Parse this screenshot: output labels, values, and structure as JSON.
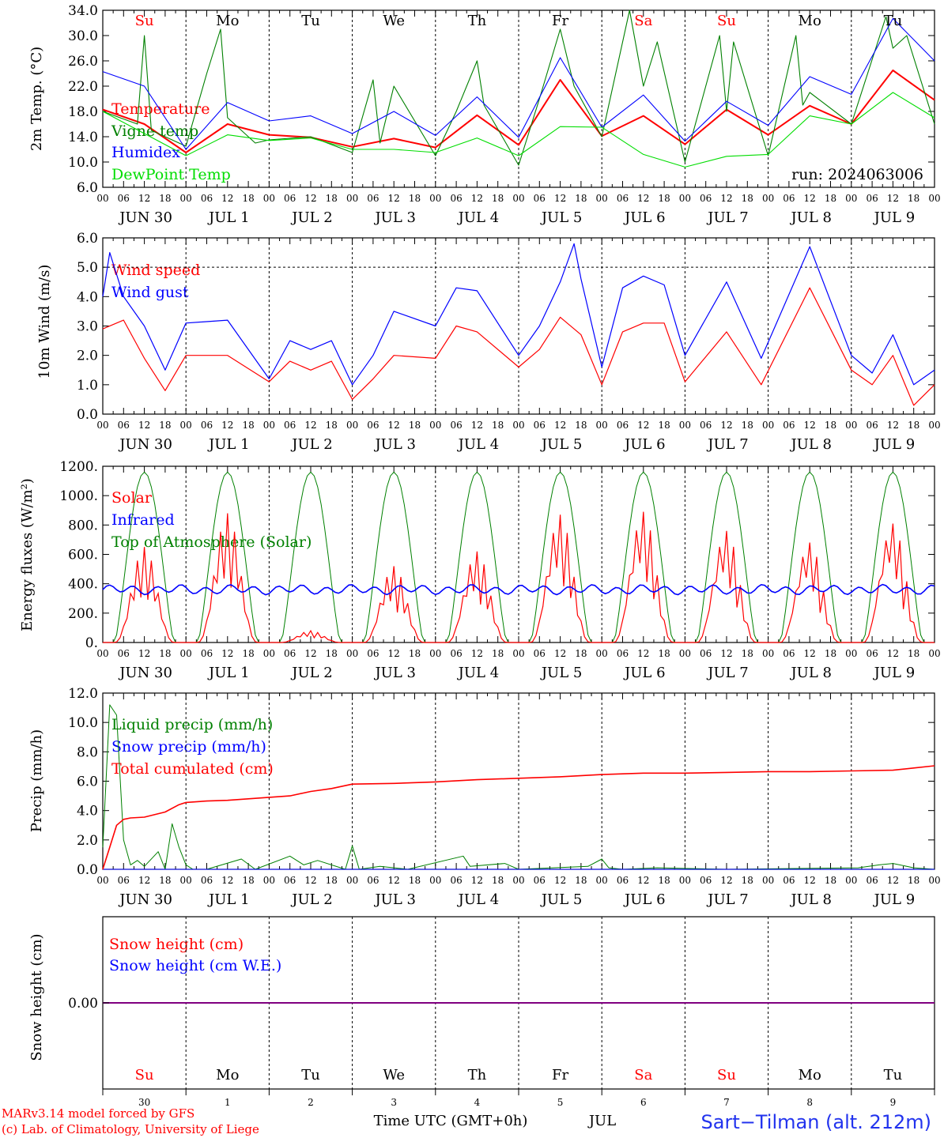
{
  "colors": {
    "red": "#ff0000",
    "green": "#008000",
    "blue": "#0000ff",
    "lightgreen": "#00dd00",
    "purple": "#800080"
  },
  "chart_data": [
    {
      "type": "line",
      "ylabel": "2m Temp. (°C)",
      "ylim": [
        6,
        34
      ],
      "yticks": [
        6,
        10,
        14,
        18,
        22,
        26,
        30,
        34
      ],
      "ytick_labels": [
        "6.0",
        "10.0",
        "14.0",
        "18.0",
        "22.0",
        "26.0",
        "30.0",
        "34.0"
      ],
      "annotation": "run: 2024063006",
      "series": [
        {
          "name": "Temperature",
          "color": "#ff0000",
          "hours": [
            0,
            12,
            24,
            36,
            48,
            60,
            72,
            84,
            96,
            108,
            120,
            132,
            144,
            156,
            168,
            180,
            192,
            204,
            216,
            228,
            240
          ],
          "values": [
            18.3,
            16.0,
            11.5,
            16.0,
            14.3,
            13.9,
            12.4,
            13.7,
            12.3,
            17.4,
            12.7,
            23.0,
            14.1,
            17.3,
            12.8,
            18.3,
            14.3,
            18.9,
            16.0,
            24.5,
            19.8
          ]
        },
        {
          "name": "Vigne temp",
          "color": "#008000",
          "hours": [
            0,
            10,
            12,
            14,
            22,
            24,
            30,
            34,
            36,
            44,
            48,
            60,
            72,
            78,
            80,
            84,
            96,
            102,
            108,
            110,
            120,
            126,
            132,
            136,
            144,
            152,
            156,
            160,
            168,
            178,
            180,
            182,
            192,
            200,
            202,
            204,
            216,
            226,
            228,
            232,
            240
          ],
          "values": [
            18.0,
            16.0,
            30.0,
            15.0,
            13.0,
            12.5,
            24.0,
            31.0,
            17.0,
            13.0,
            13.5,
            14.0,
            11.5,
            23.0,
            13.0,
            22.0,
            11.0,
            18.0,
            26.0,
            19.0,
            9.5,
            20.0,
            31.0,
            22.0,
            14.0,
            34.0,
            22.0,
            29.0,
            10.0,
            30.0,
            18.0,
            29.0,
            11.0,
            30.0,
            19.0,
            21.0,
            16.0,
            33.0,
            28.0,
            30.0,
            16.0
          ]
        },
        {
          "name": "Humidex",
          "color": "#0000ff",
          "hours": [
            0,
            12,
            24,
            36,
            48,
            60,
            72,
            84,
            96,
            108,
            120,
            132,
            144,
            156,
            168,
            180,
            192,
            204,
            216,
            228,
            240
          ],
          "values": [
            24.3,
            22.0,
            12.0,
            19.4,
            16.5,
            17.3,
            14.5,
            18.0,
            14.2,
            20.3,
            13.9,
            26.5,
            15.5,
            20.6,
            13.3,
            19.6,
            15.8,
            23.5,
            20.7,
            32.7,
            26.0
          ]
        },
        {
          "name": "DewPoint Temp",
          "color": "#00dd00",
          "hours": [
            0,
            12,
            24,
            36,
            48,
            60,
            72,
            84,
            96,
            108,
            120,
            132,
            144,
            156,
            168,
            180,
            192,
            204,
            216,
            228,
            240
          ],
          "values": [
            18.0,
            14.5,
            11.0,
            14.3,
            13.4,
            13.8,
            12.0,
            12.0,
            11.5,
            13.8,
            11.0,
            15.6,
            15.5,
            11.2,
            9.2,
            10.9,
            11.2,
            17.3,
            16.0,
            21.0,
            17.0
          ]
        }
      ]
    },
    {
      "type": "line",
      "ylabel": "10m Wind (m/s)",
      "ylim": [
        0,
        6
      ],
      "yticks": [
        0,
        1,
        2,
        3,
        4,
        5,
        6
      ],
      "ytick_labels": [
        "0.0",
        "1.0",
        "2.0",
        "3.0",
        "4.0",
        "5.0",
        "6.0"
      ],
      "series": [
        {
          "name": "Wind speed",
          "color": "#ff0000",
          "hours": [
            0,
            6,
            12,
            18,
            24,
            36,
            48,
            54,
            60,
            66,
            72,
            78,
            84,
            96,
            102,
            108,
            120,
            126,
            132,
            138,
            144,
            150,
            156,
            162,
            168,
            180,
            190,
            204,
            216,
            222,
            228,
            234,
            240
          ],
          "values": [
            2.9,
            3.2,
            1.9,
            0.8,
            2.0,
            2.0,
            1.1,
            1.8,
            1.5,
            1.8,
            0.5,
            1.2,
            2.0,
            1.9,
            3.0,
            2.8,
            1.6,
            2.2,
            3.3,
            2.7,
            1.0,
            2.8,
            3.1,
            3.1,
            1.1,
            2.8,
            1.0,
            4.3,
            1.5,
            1.0,
            2.0,
            0.3,
            1.0
          ]
        },
        {
          "name": "Wind gust",
          "color": "#0000ff",
          "hours": [
            0,
            2,
            6,
            12,
            18,
            24,
            36,
            48,
            54,
            60,
            66,
            72,
            78,
            84,
            96,
            102,
            108,
            120,
            126,
            132,
            136,
            138,
            144,
            150,
            156,
            162,
            168,
            180,
            190,
            204,
            216,
            222,
            228,
            234,
            240
          ],
          "values": [
            4.0,
            5.5,
            4.0,
            3.0,
            1.5,
            3.1,
            3.2,
            1.2,
            2.5,
            2.2,
            2.5,
            1.0,
            2.0,
            3.5,
            3.0,
            4.3,
            4.2,
            2.0,
            3.0,
            4.5,
            5.8,
            4.6,
            1.6,
            4.3,
            4.7,
            4.4,
            2.0,
            4.5,
            1.9,
            5.7,
            2.0,
            1.4,
            2.7,
            1.0,
            1.5
          ]
        }
      ]
    },
    {
      "type": "line",
      "ylabel": "Energy fluxes (W/m²)",
      "ylim": [
        0,
        1200
      ],
      "yticks": [
        0,
        200,
        400,
        600,
        800,
        1000,
        1200
      ],
      "ytick_labels": [
        "0.",
        "200.",
        "400.",
        "600.",
        "800.",
        "1000.",
        "1200."
      ],
      "toa_peak": 1160,
      "solar_daily_peak": [
        650,
        880,
        80,
        520,
        620,
        870,
        890,
        760,
        680,
        810
      ],
      "infrared_mean": 360,
      "series": [
        {
          "name": "Solar",
          "color": "#ff0000"
        },
        {
          "name": "Infrared",
          "color": "#0000ff"
        },
        {
          "name": "Top of Atmosphere (Solar)",
          "color": "#008000"
        }
      ]
    },
    {
      "type": "line",
      "ylabel": "Precip (mm/h)",
      "ylim": [
        0,
        12
      ],
      "yticks": [
        0,
        2,
        4,
        6,
        8,
        10,
        12
      ],
      "ytick_labels": [
        "0.0",
        "2.0",
        "4.0",
        "6.0",
        "8.0",
        "10.0",
        "12.0"
      ],
      "series": [
        {
          "name": "Liquid precip (mm/h)",
          "color": "#008000",
          "hours": [
            0,
            2,
            4,
            6,
            8,
            10,
            12,
            16,
            18,
            20,
            22,
            24,
            26,
            30,
            40,
            44,
            54,
            58,
            62,
            70,
            72,
            74,
            80,
            88,
            104,
            106,
            116,
            120,
            140,
            144,
            146,
            150,
            160,
            180,
            218,
            224,
            228,
            234,
            240
          ],
          "values": [
            1.5,
            11.2,
            10.5,
            2.0,
            0.3,
            0.6,
            0.2,
            1.2,
            0.0,
            3.1,
            1.5,
            0.3,
            0.0,
            0.0,
            0.7,
            0.0,
            0.9,
            0.3,
            0.6,
            0.0,
            1.6,
            0.0,
            0.2,
            0.0,
            0.9,
            0.2,
            0.4,
            0.0,
            0.2,
            0.7,
            0.1,
            0.0,
            0.1,
            0.0,
            0.1,
            0.3,
            0.4,
            0.1,
            0.0
          ]
        },
        {
          "name": "Snow precip (mm/h)",
          "color": "#0000ff",
          "hours": [
            0,
            240
          ],
          "values": [
            0,
            0
          ]
        },
        {
          "name": "Total cumulated (cm)",
          "color": "#ff0000",
          "hours": [
            0,
            2,
            4,
            6,
            8,
            12,
            18,
            22,
            24,
            30,
            36,
            42,
            48,
            54,
            60,
            66,
            72,
            84,
            96,
            108,
            120,
            132,
            144,
            156,
            168,
            180,
            192,
            204,
            216,
            228,
            234,
            240
          ],
          "values": [
            0.0,
            1.5,
            3.0,
            3.4,
            3.5,
            3.55,
            3.9,
            4.4,
            4.55,
            4.65,
            4.7,
            4.8,
            4.9,
            5.0,
            5.3,
            5.5,
            5.8,
            5.85,
            5.95,
            6.1,
            6.2,
            6.3,
            6.45,
            6.55,
            6.55,
            6.6,
            6.65,
            6.65,
            6.7,
            6.75,
            6.9,
            7.05
          ]
        }
      ]
    },
    {
      "type": "line",
      "ylabel": "Snow height (cm)",
      "ytick_labels": [
        "0.00"
      ],
      "series": [
        {
          "name": "Snow height (cm)",
          "color": "#ff0000",
          "hours": [
            0,
            240
          ],
          "values": [
            0,
            0
          ]
        },
        {
          "name": "Snow height (cm W.E.)",
          "color": "#0000ff",
          "hours": [
            0,
            240
          ],
          "values": [
            0,
            0
          ]
        }
      ]
    }
  ],
  "x_axis": {
    "hour_ticks": [
      "00",
      "06",
      "12",
      "18"
    ],
    "end_tick": "00",
    "date_labels": [
      "JUN 30",
      "JUL  1",
      "JUL  2",
      "JUL  3",
      "JUL  4",
      "JUL  5",
      "JUL  6",
      "JUL  7",
      "JUL  8",
      "JUL  9"
    ],
    "day_names": [
      "Su",
      "Mo",
      "Tu",
      "We",
      "Th",
      "Fr",
      "Sa",
      "Su",
      "Mo",
      "Tu"
    ],
    "day_colors": [
      "#ff0000",
      "#000000",
      "#000000",
      "#000000",
      "#000000",
      "#000000",
      "#ff0000",
      "#ff0000",
      "#000000",
      "#000000"
    ],
    "day_numbers": [
      "30",
      "1",
      "2",
      "3",
      "4",
      "5",
      "6",
      "7",
      "8",
      "9"
    ],
    "month": "JUL",
    "title": "Time UTC (GMT+0h)"
  },
  "footer": {
    "credit_line1": "MARv3.14 model forced by GFS",
    "credit_line2": "(c) Lab. of Climatology, University of Liege",
    "station": "Sart−Tilman (alt. 212m)"
  }
}
